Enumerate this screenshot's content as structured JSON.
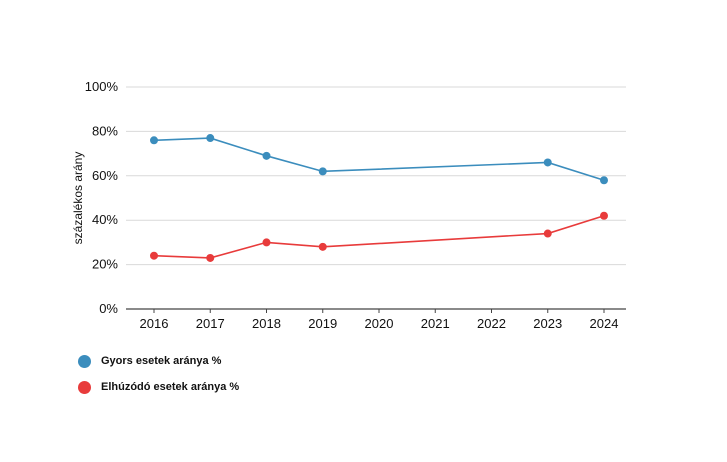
{
  "chart_data": {
    "type": "line",
    "title": "",
    "xlabel": "",
    "ylabel": "százalékos arány",
    "x": [
      "2016",
      "2017",
      "2018",
      "2019",
      "2020",
      "2021",
      "2022",
      "2023",
      "2024"
    ],
    "ylim": [
      0,
      100
    ],
    "yticks": [
      "0%",
      "20%",
      "40%",
      "60%",
      "80%",
      "100%"
    ],
    "legend_position": "bottom-left",
    "series": [
      {
        "name": "Gyors esetek aránya %",
        "color": "#3b8dbd",
        "points": [
          [
            "2016",
            76
          ],
          [
            "2017",
            77
          ],
          [
            "2018",
            69
          ],
          [
            "2019",
            62
          ],
          [
            "2023",
            66
          ],
          [
            "2024",
            58
          ]
        ]
      },
      {
        "name": "Elhúzódó esetek aránya %",
        "color": "#e83b3b",
        "points": [
          [
            "2016",
            24
          ],
          [
            "2017",
            23
          ],
          [
            "2018",
            30
          ],
          [
            "2019",
            28
          ],
          [
            "2023",
            34
          ],
          [
            "2024",
            42
          ]
        ]
      }
    ]
  },
  "legend": {
    "items": [
      {
        "label": "Gyors esetek aránya %",
        "color": "#3b8dbd"
      },
      {
        "label": "Elhúzódó esetek aránya %",
        "color": "#e83b3b"
      }
    ]
  }
}
